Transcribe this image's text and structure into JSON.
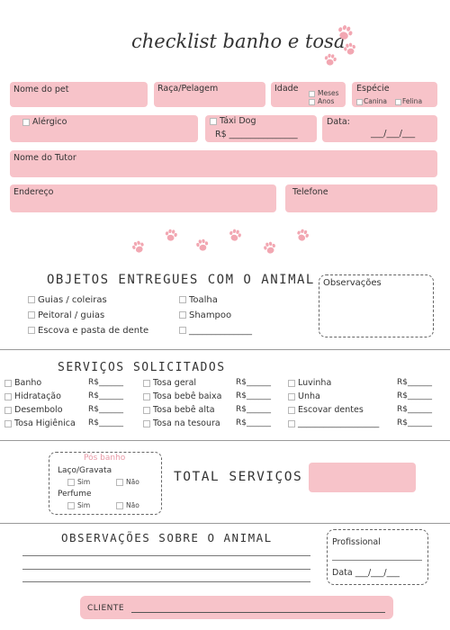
{
  "header": {
    "title": "checklist banho e tosa"
  },
  "pet_form": {
    "pet_name": "Nome do pet",
    "breed": "Raça/Pelagem",
    "age": "Idade",
    "age_months": "Meses",
    "age_years": "Anos",
    "species": "Espécie",
    "species_canine": "Canina",
    "species_feline": "Felina",
    "allergic": "Alérgico",
    "taxi_dog": "Táxi Dog",
    "taxi_price": "R$ ________________",
    "date": "Data:",
    "date_blank": "___/___/___",
    "tutor_name": "Nome do Tutor",
    "address": "Endereço",
    "phone": "Telefone"
  },
  "objects": {
    "title": "OBJETOS ENTREGUES COM O ANIMAL",
    "items": [
      "Guias / coleiras",
      "Peitoral / guias",
      "Escova e pasta de dente",
      "Toalha",
      "Shampoo",
      "______________"
    ],
    "observations_label": "Observações"
  },
  "services": {
    "title": "SERVIÇOS SOLICITADOS",
    "col1": [
      "Banho",
      "Hidratação",
      "Desembolo",
      "Tosa Higiênica"
    ],
    "col2": [
      "Tosa geral",
      "Tosa bebê baixa",
      "Tosa bebê alta",
      "Tosa na tesoura"
    ],
    "col3": [
      "Luvinha",
      "Unha",
      "Escovar dentes",
      "___________________"
    ],
    "price_blank": "R$______"
  },
  "post_bath": {
    "title": "Pós banho",
    "bow_tie": "Laço/Gravata",
    "perfume": "Perfume",
    "yes": "Sim",
    "no": "Não"
  },
  "total": {
    "label": "TOTAL SERVIÇOS R$"
  },
  "animal_obs": {
    "title": "OBSERVAÇÕES SOBRE O ANIMAL"
  },
  "professional": {
    "label": "Profissional",
    "date": "Data ___/___/___"
  },
  "client": {
    "label": "CLIENTE"
  },
  "colors": {
    "pink": "#f7c3c9",
    "paw": "#f2a7b2"
  }
}
